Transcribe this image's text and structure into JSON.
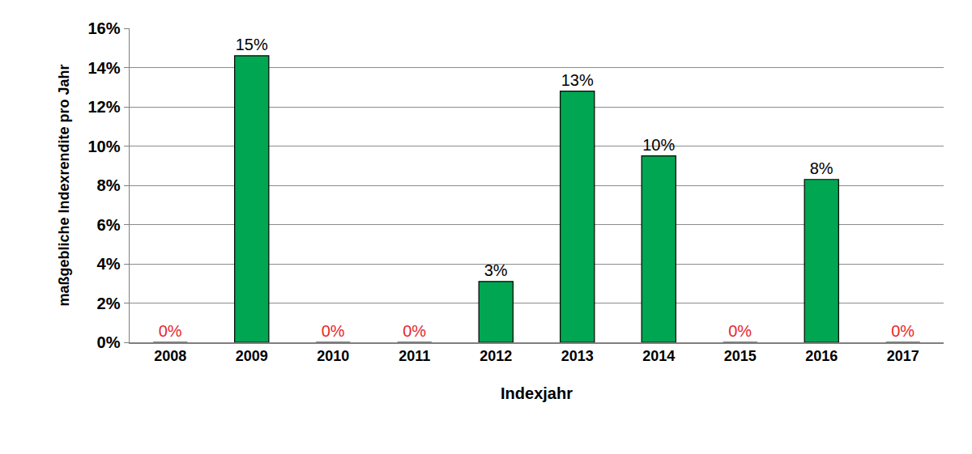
{
  "chart_data": {
    "type": "bar",
    "x_label": "Indexjahr",
    "y_label": "maßgebliche Indexrendite pro Jahr",
    "categories": [
      "2008",
      "2009",
      "2010",
      "2011",
      "2012",
      "2013",
      "2014",
      "2015",
      "2016",
      "2017"
    ],
    "values": [
      0,
      14.6,
      0,
      0,
      3.1,
      12.8,
      9.5,
      0,
      8.3,
      0
    ],
    "value_labels": [
      "0%",
      "15%",
      "0%",
      "0%",
      "3%",
      "13%",
      "10%",
      "0%",
      "8%",
      "0%"
    ],
    "data_labels": true,
    "color": "#00a651",
    "ylim": [
      0,
      16
    ],
    "yticks": [
      {
        "value": 0,
        "label": "0%"
      },
      {
        "value": 2,
        "label": "2%"
      },
      {
        "value": 4,
        "label": "4%"
      },
      {
        "value": 6,
        "label": "6%"
      },
      {
        "value": 8,
        "label": "8%"
      },
      {
        "value": 10,
        "label": "10%"
      },
      {
        "value": 12,
        "label": "12%"
      },
      {
        "value": 14,
        "label": "14%"
      },
      {
        "value": 16,
        "label": "16%"
      }
    ],
    "grid": true
  }
}
